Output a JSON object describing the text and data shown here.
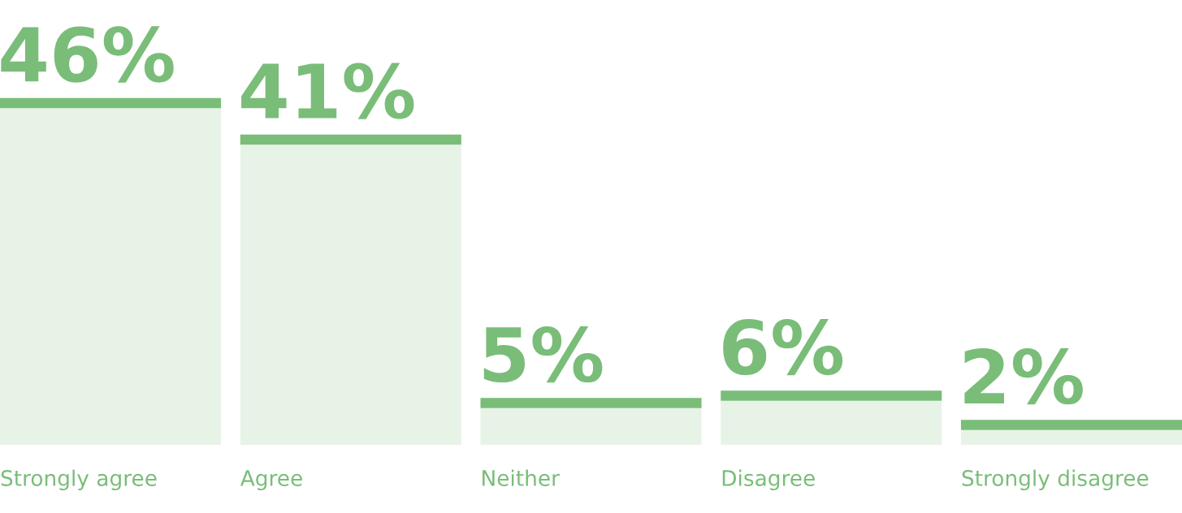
{
  "chart_data": {
    "type": "bar",
    "categories": [
      "Strongly agree",
      "Agree",
      "Neither",
      "Disagree",
      "Strongly disagree"
    ],
    "values": [
      46,
      41,
      5,
      6,
      2
    ],
    "value_labels": [
      "46%",
      "41%",
      "5%",
      "6%",
      "2%"
    ],
    "color": "#79bd79",
    "grid": false,
    "legend": false
  }
}
